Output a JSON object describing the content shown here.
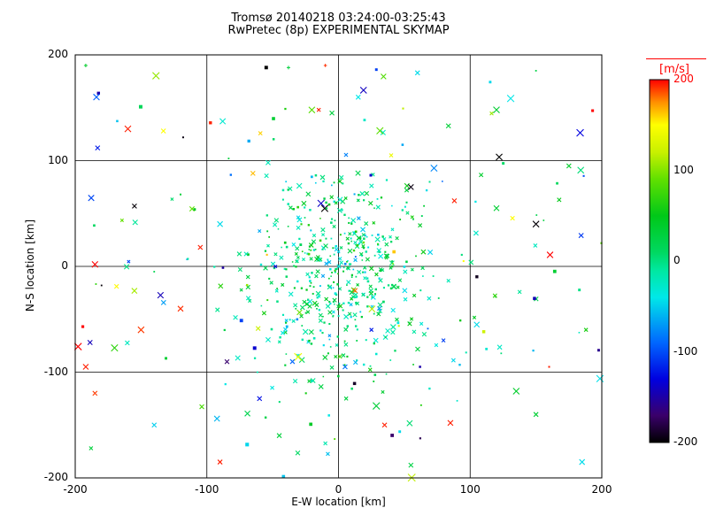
{
  "title": {
    "line1": "Tromsø 20140218 03:24:00-03:25:43",
    "line2": "RwPretec (8p) EXPERIMENTAL SKYMAP"
  },
  "axes": {
    "x_label": "E-W location [km]",
    "y_label": "N-S location [km]"
  },
  "colorbar": {
    "title": "[m/s]",
    "title_color": "#ff0000",
    "ticks": [
      {
        "v": 200,
        "label": "200",
        "color": "#ff0000"
      },
      {
        "v": 100,
        "label": "100",
        "color": "#000000"
      },
      {
        "v": 0,
        "label": "0",
        "color": "#000000"
      },
      {
        "v": -100,
        "label": "-100",
        "color": "#000000"
      },
      {
        "v": -200,
        "label": "-200",
        "color": "#000000"
      }
    ]
  },
  "chart_data": {
    "type": "scatter",
    "title": "Tromsø 20140218 03:24:00-03:25:43 — RwPretec (8p) EXPERIMENTAL SKYMAP",
    "xlabel": "E-W location [km]",
    "ylabel": "N-S location [km]",
    "xlim": [
      -200,
      200
    ],
    "ylim": [
      -200,
      200
    ],
    "x_ticks": [
      -200,
      -100,
      0,
      100,
      200
    ],
    "y_ticks": [
      -200,
      -100,
      0,
      100,
      200
    ],
    "grid_values": [
      -100,
      0,
      100
    ],
    "grid": true,
    "legend_position": "colorbar-right",
    "color_scale": {
      "unit": "m/s",
      "domain": [
        -200,
        200
      ],
      "stops": [
        {
          "v": -200,
          "c": "#000000"
        },
        {
          "v": -170,
          "c": "#3a006b"
        },
        {
          "v": -130,
          "c": "#0000e0"
        },
        {
          "v": -90,
          "c": "#0066ff"
        },
        {
          "v": -40,
          "c": "#00e8e8"
        },
        {
          "v": -10,
          "c": "#00e8a0"
        },
        {
          "v": 10,
          "c": "#00d860"
        },
        {
          "v": 50,
          "c": "#00c818"
        },
        {
          "v": 90,
          "c": "#60e000"
        },
        {
          "v": 120,
          "c": "#c8f000"
        },
        {
          "v": 150,
          "c": "#ffff00"
        },
        {
          "v": 175,
          "c": "#ff9000"
        },
        {
          "v": 200,
          "c": "#ff0000"
        }
      ]
    },
    "seed": 20140218,
    "clusters": [
      {
        "name": "core-dense",
        "dist": "gauss",
        "n": 420,
        "cx": -2,
        "cy": -8,
        "sx": 34,
        "sy": 46,
        "v_mean": 5,
        "v_sd": 30,
        "markers": [
          "dot",
          "x"
        ],
        "size": [
          1.5,
          2.6
        ]
      },
      {
        "name": "mid-spread",
        "dist": "gauss",
        "n": 150,
        "cx": 5,
        "cy": -15,
        "sx": 70,
        "sy": 70,
        "v_mean": 0,
        "v_sd": 55,
        "markers": [
          "dot",
          "x"
        ],
        "size": [
          1.5,
          3.0
        ]
      },
      {
        "name": "outer-field",
        "dist": "uniform",
        "n": 80,
        "xr": [
          -200,
          200
        ],
        "yr": [
          -200,
          200
        ],
        "v_mean": 0,
        "v_sd": 130,
        "markers": [
          "x",
          "dot"
        ],
        "size": [
          2.0,
          4.2
        ]
      }
    ],
    "points": [
      [
        -192,
        190,
        40,
        2,
        "plus"
      ],
      [
        -183,
        112,
        -120,
        2.5,
        "x"
      ],
      [
        -160,
        130,
        195,
        3.5,
        "x"
      ],
      [
        -133,
        128,
        150,
        2.5,
        "x"
      ],
      [
        -118,
        122,
        -195,
        2,
        "dot"
      ],
      [
        -155,
        57,
        -198,
        2.5,
        "x"
      ],
      [
        -180,
        -18,
        -198,
        1.8,
        "dot"
      ],
      [
        -105,
        18,
        195,
        2.5,
        "x"
      ],
      [
        -192,
        -95,
        195,
        3,
        "x"
      ],
      [
        -150,
        -60,
        190,
        3.5,
        "x"
      ],
      [
        -120,
        -40,
        192,
        3,
        "x"
      ],
      [
        -185,
        -120,
        190,
        2.5,
        "x"
      ],
      [
        -140,
        -150,
        -50,
        2.5,
        "x"
      ],
      [
        -90,
        -185,
        195,
        2.5,
        "x"
      ],
      [
        -188,
        -172,
        30,
        2,
        "x"
      ],
      [
        -60,
        -125,
        -125,
        2.5,
        "x"
      ],
      [
        -45,
        -160,
        30,
        2.5,
        "x"
      ],
      [
        -35,
        -90,
        -90,
        2.5,
        "x"
      ],
      [
        25,
        -60,
        -120,
        2,
        "x"
      ],
      [
        5,
        -95,
        -85,
        2.5,
        "x"
      ],
      [
        35,
        -150,
        195,
        2.5,
        "x"
      ],
      [
        55,
        -188,
        25,
        2.5,
        "x"
      ],
      [
        85,
        -148,
        195,
        3,
        "x"
      ],
      [
        135,
        -118,
        40,
        3.5,
        "x"
      ],
      [
        150,
        -140,
        35,
        2.5,
        "x"
      ],
      [
        185,
        -185,
        -45,
        3,
        "x"
      ],
      [
        160,
        -95,
        195,
        2,
        "dot"
      ],
      [
        188,
        -60,
        60,
        2,
        "x"
      ],
      [
        105,
        -55,
        -45,
        3,
        "x"
      ],
      [
        150,
        40,
        -198,
        3.5,
        "x"
      ],
      [
        120,
        55,
        35,
        3,
        "x"
      ],
      [
        88,
        62,
        195,
        2.5,
        "x"
      ],
      [
        55,
        75,
        -195,
        3,
        "x"
      ],
      [
        175,
        95,
        40,
        2.5,
        "x"
      ],
      [
        120,
        148,
        35,
        3.5,
        "x"
      ],
      [
        150,
        185,
        25,
        1.8,
        "dot"
      ],
      [
        60,
        183,
        -45,
        2.5,
        "x"
      ],
      [
        15,
        160,
        -40,
        2.5,
        "x"
      ],
      [
        -5,
        145,
        30,
        2.5,
        "x"
      ],
      [
        -15,
        148,
        195,
        2,
        "x"
      ],
      [
        -10,
        190,
        192,
        1.8,
        "plus"
      ],
      [
        -38,
        188,
        30,
        2,
        "plus"
      ],
      [
        -65,
        88,
        165,
        2.5,
        "x"
      ],
      [
        -90,
        40,
        -45,
        3,
        "x"
      ],
      [
        -140,
        -5,
        20,
        1.8,
        "dot"
      ],
      [
        95,
        5,
        150,
        2,
        "dot"
      ],
      [
        40,
        105,
        140,
        2,
        "x"
      ],
      [
        -120,
        68,
        30,
        2,
        "dot"
      ]
    ]
  }
}
